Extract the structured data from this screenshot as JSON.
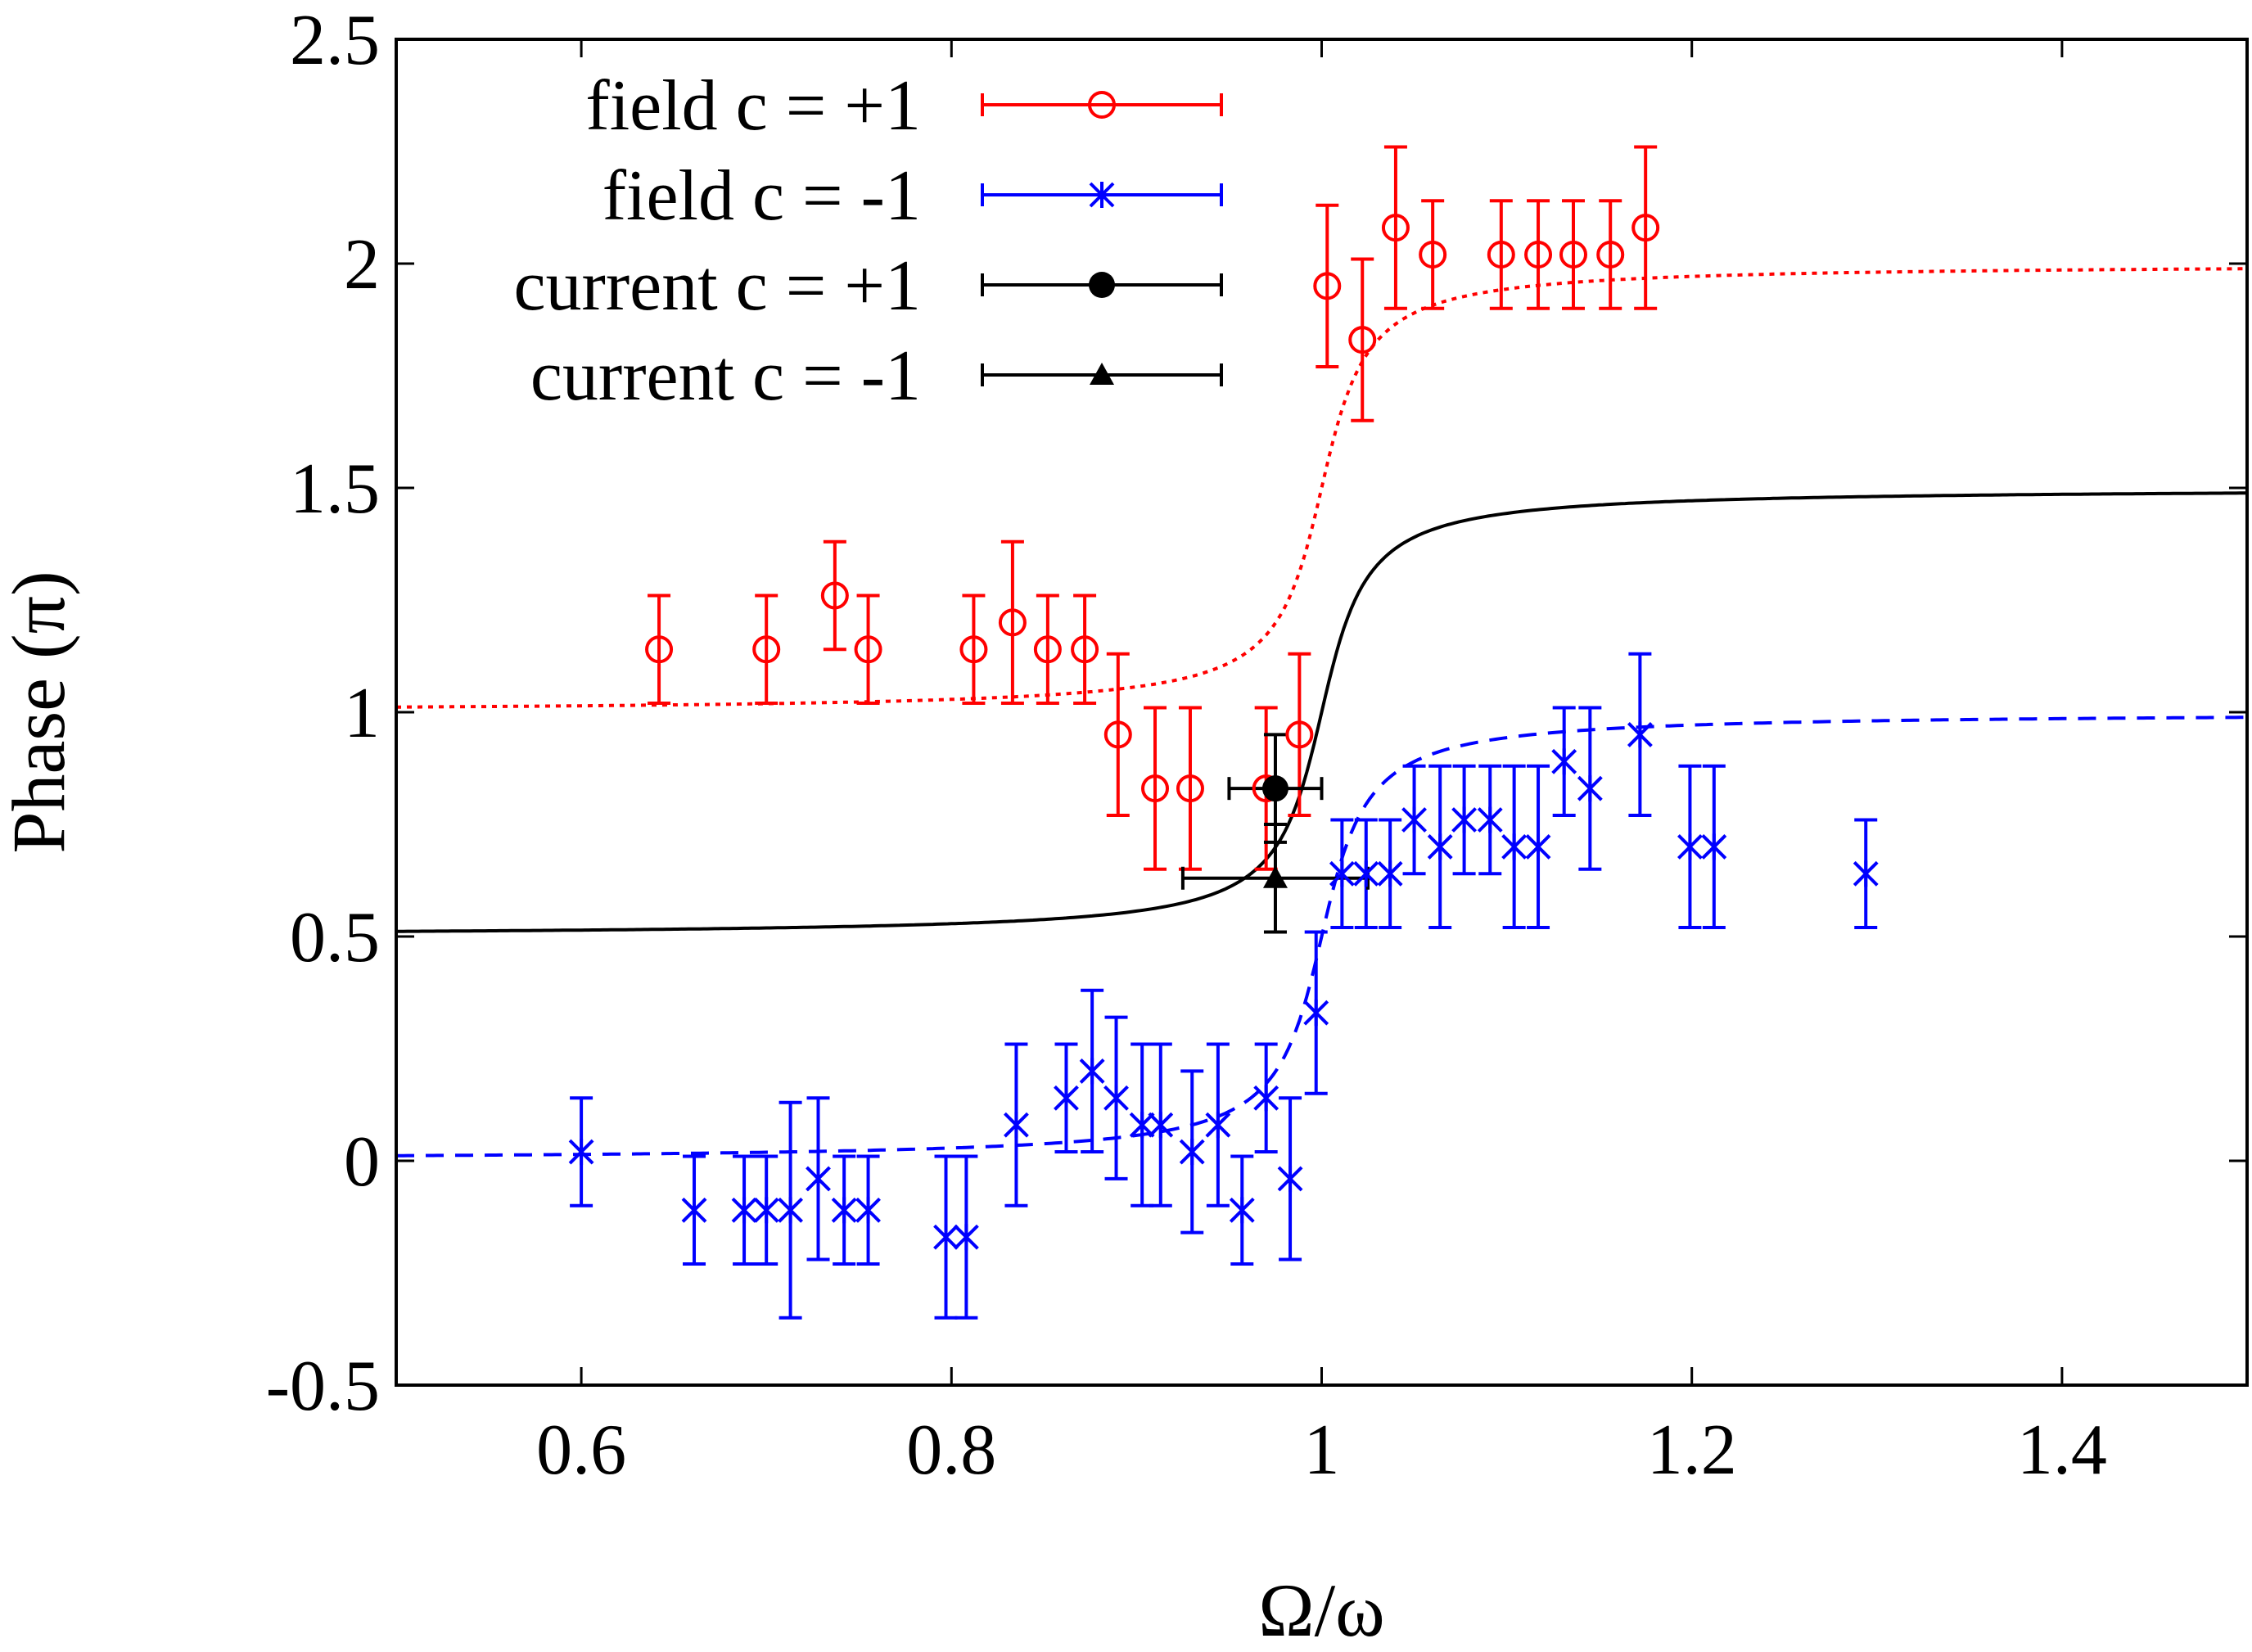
{
  "chart_data": {
    "type": "scatter",
    "title": "",
    "xlabel": "Ω/ω",
    "ylabel": "Phase (π)",
    "xlim": [
      0.5,
      1.5
    ],
    "ylim": [
      -0.5,
      2.5
    ],
    "xticks": [
      "0.6",
      "0.8",
      "1",
      "1.2",
      "1.4"
    ],
    "yticks": [
      "-0.5",
      "0",
      "0.5",
      "1",
      "1.5",
      "2",
      "2.5"
    ],
    "grid": false,
    "legend_position": "top-left",
    "series": [
      {
        "name": "field c = +1",
        "color": "#ff0000",
        "marker": "open-circle",
        "x": [
          0.642,
          0.7,
          0.737,
          0.755,
          0.812,
          0.833,
          0.852,
          0.872,
          0.89,
          0.91,
          0.929,
          0.97,
          0.988,
          1.003,
          1.022,
          1.04,
          1.06,
          1.097,
          1.117,
          1.136,
          1.156,
          1.175
        ],
        "y": [
          1.14,
          1.14,
          1.26,
          1.14,
          1.14,
          1.2,
          1.14,
          1.14,
          0.95,
          0.83,
          0.83,
          0.83,
          0.95,
          1.95,
          1.83,
          2.08,
          2.02,
          2.02,
          2.02,
          2.02,
          2.02,
          2.08
        ],
        "err": [
          0.12,
          0.12,
          0.12,
          0.12,
          0.12,
          0.18,
          0.12,
          0.12,
          0.18,
          0.18,
          0.18,
          0.18,
          0.18,
          0.18,
          0.18,
          0.18,
          0.12,
          0.12,
          0.12,
          0.12,
          0.12,
          0.18
        ]
      },
      {
        "name": "field c = -1",
        "color": "#0000ff",
        "marker": "asterisk",
        "x": [
          0.6,
          0.661,
          0.688,
          0.7,
          0.713,
          0.728,
          0.742,
          0.755,
          0.797,
          0.808,
          0.835,
          0.862,
          0.876,
          0.889,
          0.903,
          0.913,
          0.93,
          0.944,
          0.957,
          0.97,
          0.983,
          0.997,
          1.011,
          1.024,
          1.037,
          1.05,
          1.064,
          1.077,
          1.091,
          1.104,
          1.117,
          1.131,
          1.145,
          1.172,
          1.199,
          1.212,
          1.294
        ],
        "y": [
          0.02,
          -0.11,
          -0.11,
          -0.11,
          -0.11,
          -0.04,
          -0.11,
          -0.11,
          -0.17,
          -0.17,
          0.08,
          0.14,
          0.2,
          0.14,
          0.08,
          0.08,
          0.02,
          0.08,
          -0.11,
          0.14,
          -0.04,
          0.33,
          0.64,
          0.64,
          0.64,
          0.76,
          0.7,
          0.76,
          0.76,
          0.7,
          0.7,
          0.89,
          0.83,
          0.95,
          0.7,
          0.7,
          0.64
        ],
        "err": [
          0.12,
          0.12,
          0.12,
          0.12,
          0.24,
          0.18,
          0.12,
          0.12,
          0.18,
          0.18,
          0.18,
          0.12,
          0.18,
          0.18,
          0.18,
          0.18,
          0.18,
          0.18,
          0.12,
          0.12,
          0.18,
          0.18,
          0.12,
          0.12,
          0.12,
          0.12,
          0.18,
          0.12,
          0.12,
          0.18,
          0.18,
          0.12,
          0.18,
          0.18,
          0.18,
          0.18,
          0.12
        ]
      },
      {
        "name": "current c = +1",
        "color": "#000000",
        "marker": "filled-circle",
        "x": [
          0.975
        ],
        "y": [
          0.83
        ],
        "xerr": [
          0.025
        ],
        "err": [
          0.12
        ]
      },
      {
        "name": "current c = -1",
        "color": "#000000",
        "marker": "filled-triangle",
        "x": [
          0.975
        ],
        "y": [
          0.63
        ],
        "xerr": [
          0.05
        ],
        "err": [
          0.12
        ]
      }
    ],
    "curves": [
      {
        "color": "#ff0000",
        "style": "dotted",
        "base": 1.0,
        "resonance": 1.0,
        "width": 0.018
      },
      {
        "color": "#000000",
        "style": "solid",
        "base": 0.5,
        "resonance": 1.0,
        "width": 0.018
      },
      {
        "color": "#0000ff",
        "style": "dashed",
        "base": 0.0,
        "resonance": 1.0,
        "width": 0.018
      }
    ]
  }
}
